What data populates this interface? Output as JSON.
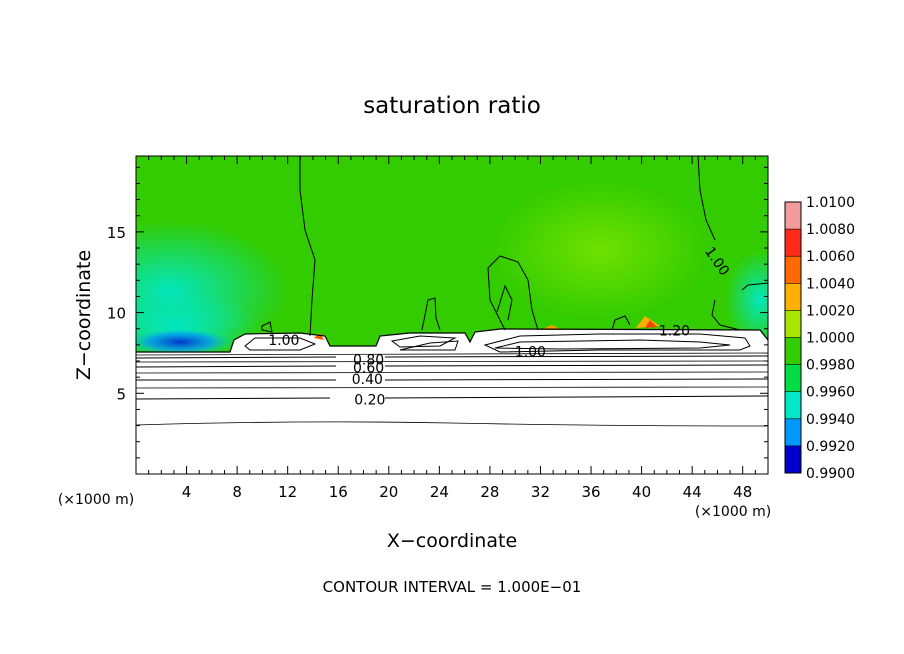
{
  "chart_data": {
    "type": "heatmap",
    "title": "saturation ratio",
    "xlabel": "X−coordinate",
    "ylabel": "Z−coordinate",
    "x_unit": "(×1000 m)",
    "x_unit_right": "(×1000 m)",
    "xlim": [
      0,
      50
    ],
    "ylim": [
      0,
      19.7
    ],
    "xticks": [
      4,
      8,
      12,
      16,
      20,
      24,
      28,
      32,
      36,
      40,
      44,
      48
    ],
    "yticks": [
      5,
      10,
      15
    ],
    "colorbar": {
      "labels": [
        "1.0100",
        "1.0080",
        "1.0060",
        "1.0040",
        "1.0020",
        "1.0000",
        "0.9980",
        "0.9960",
        "0.9940",
        "0.9920",
        "0.9900"
      ],
      "min": 0.99,
      "max": 1.01,
      "colors": [
        "#f29b9b",
        "#ff2a1a",
        "#ff6a00",
        "#ffb000",
        "#a6e600",
        "#33cc00",
        "#00dd44",
        "#00e8c8",
        "#0099ff",
        "#0000cc",
        "#6a00a8"
      ]
    },
    "background_value": 1.0,
    "contour_labels": [
      {
        "text": "0.20",
        "x": 18.5,
        "z": 4.6
      },
      {
        "text": "0.40",
        "x": 18.3,
        "z": 5.9
      },
      {
        "text": "0.60",
        "x": 18.4,
        "z": 6.6
      },
      {
        "text": "0.80",
        "x": 18.4,
        "z": 7.1
      },
      {
        "text": "1.00",
        "x": 11.7,
        "z": 8.3
      },
      {
        "text": "1.00",
        "x": 31.2,
        "z": 7.6
      },
      {
        "text": "1.20",
        "x": 42.6,
        "z": 8.9
      },
      {
        "text": "1.00",
        "x": 46.0,
        "z": 13.2
      }
    ],
    "annotation": "CONTOUR INTERVAL = 1.000E−01"
  }
}
